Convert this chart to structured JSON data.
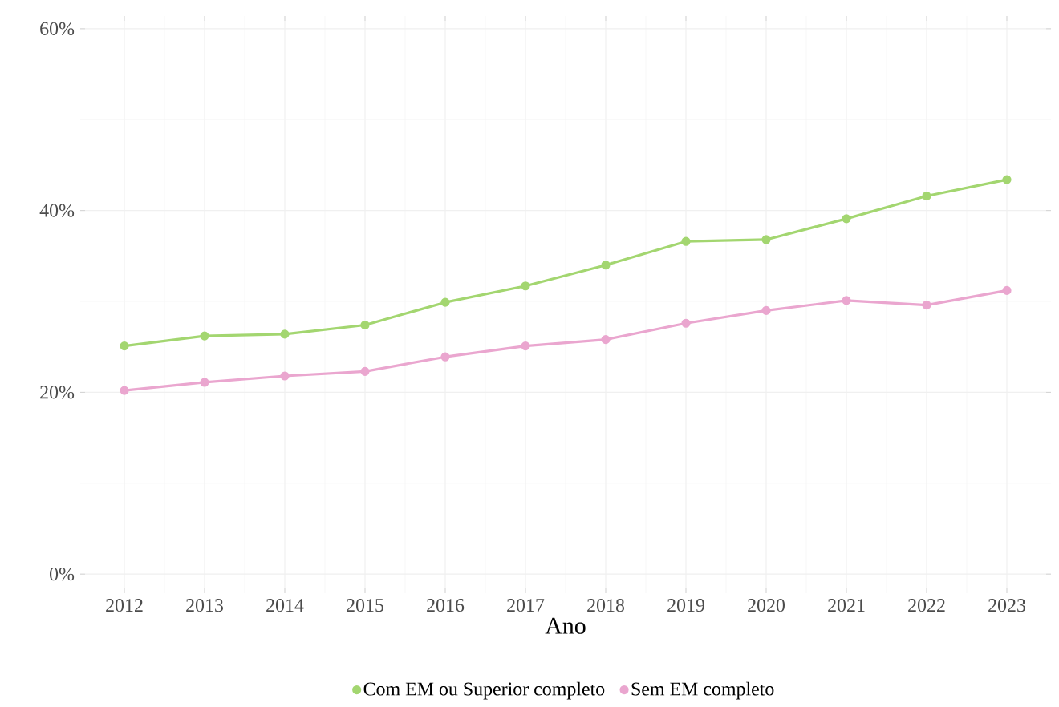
{
  "chart_data": {
    "type": "line",
    "xlabel": "Ano",
    "x": [
      2012,
      2013,
      2014,
      2015,
      2016,
      2017,
      2018,
      2019,
      2020,
      2021,
      2022,
      2023
    ],
    "series": [
      {
        "name": "Com EM ou Superior completo",
        "color": "#a3d670",
        "values": [
          25.1,
          26.2,
          26.4,
          27.4,
          29.9,
          31.7,
          34.0,
          36.6,
          36.8,
          39.1,
          41.6,
          43.4
        ]
      },
      {
        "name": "Sem EM completo",
        "color": "#eaa6cf",
        "values": [
          20.2,
          21.1,
          21.8,
          22.3,
          23.9,
          25.1,
          25.8,
          27.6,
          29.0,
          30.1,
          29.6,
          31.2
        ]
      }
    ],
    "xlim": [
      2011.45,
      2023.55
    ],
    "ylim": [
      -2.1,
      61.4
    ],
    "xticks": [
      2012,
      2013,
      2014,
      2015,
      2016,
      2017,
      2018,
      2019,
      2020,
      2021,
      2022,
      2023
    ],
    "yticks": [
      {
        "value": 0,
        "label": "0%"
      },
      {
        "value": 20,
        "label": "20%"
      },
      {
        "value": 40,
        "label": "40%"
      },
      {
        "value": 60,
        "label": "60%"
      }
    ],
    "grid": true,
    "legend": "bottom",
    "marker": "circle",
    "line_style": "solid"
  }
}
